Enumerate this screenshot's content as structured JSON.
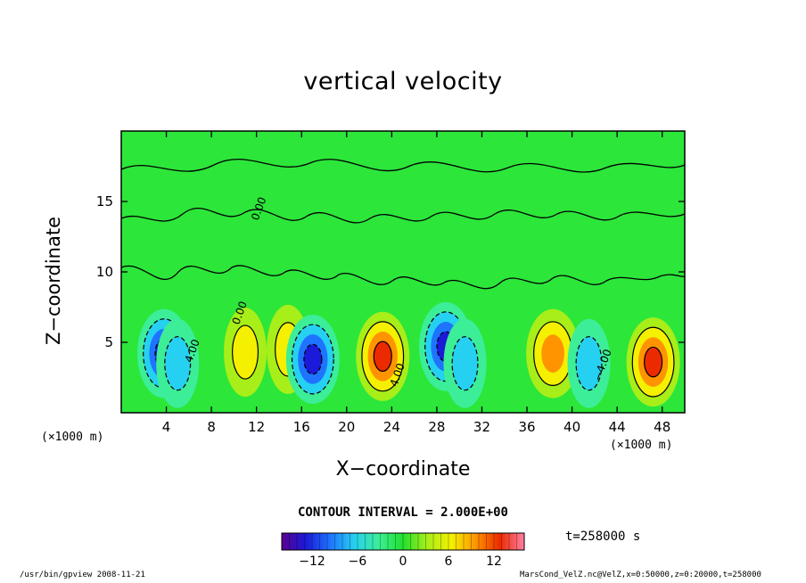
{
  "chart_data": {
    "type": "heatmap",
    "title": "vertical velocity",
    "xlabel": "X−coordinate",
    "ylabel": "Z−coordinate",
    "x_unit_left": "(×1000 m)",
    "x_unit_right": "(×1000 m)",
    "xlim": [
      0,
      50
    ],
    "ylim": [
      0,
      20
    ],
    "x_ticks": [
      "4",
      "8",
      "12",
      "16",
      "20",
      "24",
      "28",
      "32",
      "36",
      "40",
      "44",
      "48"
    ],
    "y_ticks": [
      "5",
      "10",
      "15"
    ],
    "contour_labels": [
      {
        "text": "4.00",
        "x": 6.6,
        "z": 4.3
      },
      {
        "text": "4.00",
        "x": 24.8,
        "z": 2.6
      },
      {
        "text": "−4.00",
        "x": 43.0,
        "z": 3.3
      },
      {
        "text": "0.00",
        "x": 12.5,
        "z": 14.4
      },
      {
        "text": "0.00",
        "x": 10.8,
        "z": 7.0
      }
    ],
    "cells": [
      {
        "x": 3.8,
        "z": 4.2,
        "w": -12
      },
      {
        "x": 5.0,
        "z": 3.5,
        "w": -8
      },
      {
        "x": 11.0,
        "z": 4.3,
        "w": 6
      },
      {
        "x": 14.8,
        "z": 4.5,
        "w": 5
      },
      {
        "x": 17.0,
        "z": 3.8,
        "w": -12
      },
      {
        "x": 23.2,
        "z": 4.0,
        "w": 13
      },
      {
        "x": 28.8,
        "z": 4.7,
        "w": -14
      },
      {
        "x": 30.5,
        "z": 3.5,
        "w": -7
      },
      {
        "x": 38.3,
        "z": 4.2,
        "w": 11
      },
      {
        "x": 41.5,
        "z": 3.5,
        "w": -8
      },
      {
        "x": 47.2,
        "z": 3.6,
        "w": 13
      }
    ],
    "colorbar": {
      "min": -16,
      "max": 16,
      "ticks": [
        "−12",
        "−6",
        "0",
        "6",
        "12"
      ],
      "tick_values": [
        -12,
        -6,
        0,
        6,
        12
      ],
      "stops": [
        "#5b0090",
        "#1a1ad8",
        "#1e74ff",
        "#26d0f0",
        "#3cee98",
        "#22e02e",
        "#a8ee18",
        "#f4f000",
        "#ff9400",
        "#ec2a00",
        "#ff7fa4"
      ]
    },
    "contour_interval": "CONTOUR INTERVAL = 2.000E+00",
    "time_label": "t=258000 s"
  },
  "footer": {
    "left": "/usr/bin/gpview  2008-11-21",
    "right": "MarsCond_VelZ.nc@VelZ,x=0:50000,z=0:20000,t=258000"
  }
}
